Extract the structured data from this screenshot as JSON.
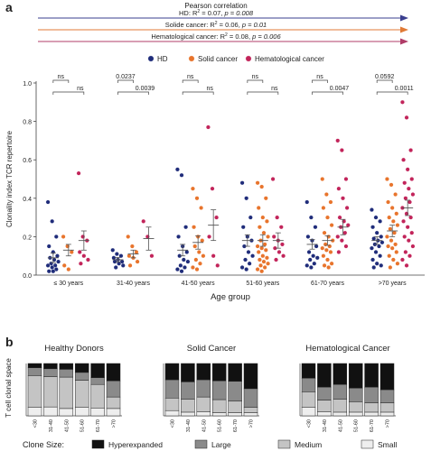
{
  "panel_a": {
    "label": "a",
    "pearson_title": "Pearson correlation",
    "correlations": [
      {
        "text_prefix": "HD: R",
        "text_rest": " = 0.07, ",
        "p": "p = 0.008",
        "color": "#3a3f8f"
      },
      {
        "text_prefix": "Solide cancer: R",
        "text_rest": " = 0.06, ",
        "p": "p = 0.01",
        "color": "#e07a36"
      },
      {
        "text_prefix": "Hematological cancer: R",
        "text_rest": " = 0.08, ",
        "p": "p = 0.006",
        "color": "#b03c68"
      }
    ]
  },
  "panel_b": {
    "label": "b",
    "ylabel": "T cell clonal space",
    "group_titles": [
      "Healthy Donors",
      "Solid Cancer",
      "Hematological Cancer"
    ],
    "clone_size_label": "Clone Size:"
  },
  "colors": {
    "hd": "#1f2c7a",
    "solid": "#e8742c",
    "hema": "#c2245a",
    "hyperexpanded": "#111111",
    "large": "#8a8a8a",
    "medium": "#c4c4c4",
    "small": "#eeeeee"
  },
  "chart_data": [
    {
      "type": "scatter",
      "ylabel": "Clonality index TCR repertoire",
      "xlabel": "Age group",
      "ylim": [
        0,
        1.0
      ],
      "yticks": [
        0.0,
        0.2,
        0.4,
        0.6,
        0.8,
        1.0
      ],
      "categories": [
        "≤ 30 years",
        "31-40 years",
        "41-50 years",
        "51-60 years",
        "61-70 years",
        ">70 years"
      ],
      "legend": [
        "HD",
        "Solid cancer",
        "Hematological cancer"
      ],
      "legend_position": "top",
      "series": [
        {
          "name": "HD",
          "color": "#1f2c7a",
          "means": [
            0.09,
            0.08,
            0.13,
            0.18,
            0.16,
            0.18
          ],
          "sem": [
            0.025,
            0.012,
            0.03,
            0.03,
            0.025,
            0.02
          ],
          "points": [
            [
              0.38,
              0.28,
              0.2,
              0.15,
              0.12,
              0.1,
              0.09,
              0.08,
              0.07,
              0.06,
              0.05,
              0.05,
              0.04,
              0.03,
              0.02,
              0.02
            ],
            [
              0.13,
              0.11,
              0.1,
              0.09,
              0.08,
              0.07,
              0.07,
              0.06,
              0.05,
              0.04
            ],
            [
              0.55,
              0.52,
              0.25,
              0.2,
              0.15,
              0.12,
              0.1,
              0.08,
              0.07,
              0.05,
              0.04,
              0.03,
              0.02
            ],
            [
              0.48,
              0.4,
              0.3,
              0.25,
              0.2,
              0.18,
              0.15,
              0.12,
              0.1,
              0.08,
              0.06,
              0.04,
              0.03
            ],
            [
              0.38,
              0.3,
              0.25,
              0.2,
              0.18,
              0.15,
              0.12,
              0.1,
              0.09,
              0.08,
              0.06,
              0.05,
              0.04
            ],
            [
              0.34,
              0.3,
              0.28,
              0.25,
              0.22,
              0.2,
              0.19,
              0.18,
              0.17,
              0.16,
              0.15,
              0.14,
              0.12,
              0.1,
              0.08,
              0.06,
              0.05,
              0.04
            ]
          ]
        },
        {
          "name": "Solid cancer",
          "color": "#e8742c",
          "means": [
            0.13,
            0.11,
            0.17,
            0.18,
            0.18,
            0.23
          ],
          "sem": [
            0.03,
            0.02,
            0.035,
            0.03,
            0.025,
            0.03
          ],
          "points": [
            [
              0.2,
              0.15,
              0.12,
              0.05,
              0.03
            ],
            [
              0.2,
              0.15,
              0.12,
              0.1,
              0.09,
              0.07,
              0.05
            ],
            [
              0.45,
              0.4,
              0.35,
              0.25,
              0.2,
              0.18,
              0.15,
              0.12,
              0.1,
              0.08,
              0.06,
              0.04,
              0.03
            ],
            [
              0.48,
              0.46,
              0.4,
              0.35,
              0.3,
              0.28,
              0.25,
              0.22,
              0.2,
              0.18,
              0.16,
              0.15,
              0.14,
              0.13,
              0.12,
              0.1,
              0.09,
              0.08,
              0.07,
              0.06,
              0.05,
              0.04,
              0.03,
              0.02
            ],
            [
              0.5,
              0.42,
              0.38,
              0.35,
              0.3,
              0.26,
              0.22,
              0.2,
              0.18,
              0.16,
              0.15,
              0.14,
              0.13,
              0.12,
              0.1,
              0.08,
              0.06,
              0.05,
              0.04
            ],
            [
              0.5,
              0.47,
              0.42,
              0.38,
              0.35,
              0.32,
              0.3,
              0.28,
              0.26,
              0.24,
              0.22,
              0.2,
              0.18,
              0.16,
              0.15,
              0.14,
              0.12,
              0.1,
              0.08,
              0.06,
              0.04
            ]
          ]
        },
        {
          "name": "Hematological cancer",
          "color": "#c2245a",
          "means": [
            0.18,
            0.19,
            0.26,
            0.18,
            0.25,
            0.35
          ],
          "sem": [
            0.05,
            0.06,
            0.08,
            0.04,
            0.04,
            0.04
          ],
          "points": [
            [
              0.53,
              0.2,
              0.18,
              0.12,
              0.1,
              0.08,
              0.06
            ],
            [
              0.28,
              0.2,
              0.1
            ],
            [
              0.77,
              0.45,
              0.3,
              0.2,
              0.1,
              0.05
            ],
            [
              0.5,
              0.3,
              0.25,
              0.2,
              0.18,
              0.16,
              0.14,
              0.12,
              0.1,
              0.08
            ],
            [
              0.7,
              0.65,
              0.5,
              0.45,
              0.4,
              0.35,
              0.3,
              0.28,
              0.26,
              0.25,
              0.22,
              0.2,
              0.18,
              0.15,
              0.12
            ],
            [
              0.9,
              0.82,
              0.65,
              0.6,
              0.55,
              0.5,
              0.48,
              0.45,
              0.42,
              0.4,
              0.38,
              0.35,
              0.32,
              0.3,
              0.28,
              0.25,
              0.22,
              0.2,
              0.18,
              0.15,
              0.12,
              0.1,
              0.08,
              0.05
            ]
          ]
        }
      ],
      "annotations": [
        {
          "group": 0,
          "pair": "HD-Solid",
          "text": "ns"
        },
        {
          "group": 0,
          "pair": "HD-Hema",
          "text": "ns"
        },
        {
          "group": 1,
          "pair": "HD-Solid",
          "text": "0.0237"
        },
        {
          "group": 1,
          "pair": "HD-Hema",
          "text": "0.0039"
        },
        {
          "group": 2,
          "pair": "HD-Solid",
          "text": "ns"
        },
        {
          "group": 2,
          "pair": "HD-Hema",
          "text": "ns"
        },
        {
          "group": 3,
          "pair": "HD-Solid",
          "text": "ns"
        },
        {
          "group": 3,
          "pair": "HD-Hema",
          "text": "ns"
        },
        {
          "group": 4,
          "pair": "HD-Solid",
          "text": "ns"
        },
        {
          "group": 4,
          "pair": "HD-Hema",
          "text": "0.0047"
        },
        {
          "group": 5,
          "pair": "HD-Solid",
          "text": "0.0592"
        },
        {
          "group": 5,
          "pair": "HD-Hema",
          "text": "0.0011"
        }
      ]
    },
    {
      "type": "bar",
      "stacked": true,
      "ylabel": "T cell clonal space",
      "categories": [
        "<30",
        "31-40",
        "41-50",
        "51-60",
        "61-70",
        ">70"
      ],
      "legend": [
        "Hyperexpanded",
        "Large",
        "Medium",
        "Small"
      ],
      "legend_position": "bottom",
      "groups": [
        {
          "title": "Healthy Donors",
          "series": [
            {
              "name": "Small",
              "values": [
                0.16,
                0.17,
                0.14,
                0.16,
                0.15,
                0.14
              ]
            },
            {
              "name": "Medium",
              "values": [
                0.61,
                0.58,
                0.6,
                0.52,
                0.45,
                0.22
              ]
            },
            {
              "name": "Large",
              "values": [
                0.15,
                0.15,
                0.15,
                0.15,
                0.13,
                0.31
              ]
            },
            {
              "name": "Hyperexpanded",
              "values": [
                0.08,
                0.1,
                0.11,
                0.17,
                0.27,
                0.33
              ]
            }
          ]
        },
        {
          "title": "Solid Cancer",
          "series": [
            {
              "name": "Small",
              "values": [
                0.1,
                0.07,
                0.08,
                0.06,
                0.06,
                0.06
              ]
            },
            {
              "name": "Medium",
              "values": [
                0.24,
                0.25,
                0.28,
                0.25,
                0.22,
                0.1
              ]
            },
            {
              "name": "Large",
              "values": [
                0.35,
                0.33,
                0.33,
                0.36,
                0.38,
                0.36
              ]
            },
            {
              "name": "Hyperexpanded",
              "values": [
                0.31,
                0.35,
                0.31,
                0.33,
                0.34,
                0.48
              ]
            }
          ]
        },
        {
          "title": "Hematological Cancer",
          "series": [
            {
              "name": "Small",
              "values": [
                0.16,
                0.08,
                0.07,
                0.07,
                0.07,
                0.07
              ]
            },
            {
              "name": "Medium",
              "values": [
                0.3,
                0.22,
                0.25,
                0.2,
                0.18,
                0.18
              ]
            },
            {
              "name": "Large",
              "values": [
                0.26,
                0.25,
                0.28,
                0.26,
                0.3,
                0.25
              ]
            },
            {
              "name": "Hyperexpanded",
              "values": [
                0.28,
                0.45,
                0.4,
                0.47,
                0.45,
                0.5
              ]
            }
          ]
        }
      ]
    }
  ]
}
